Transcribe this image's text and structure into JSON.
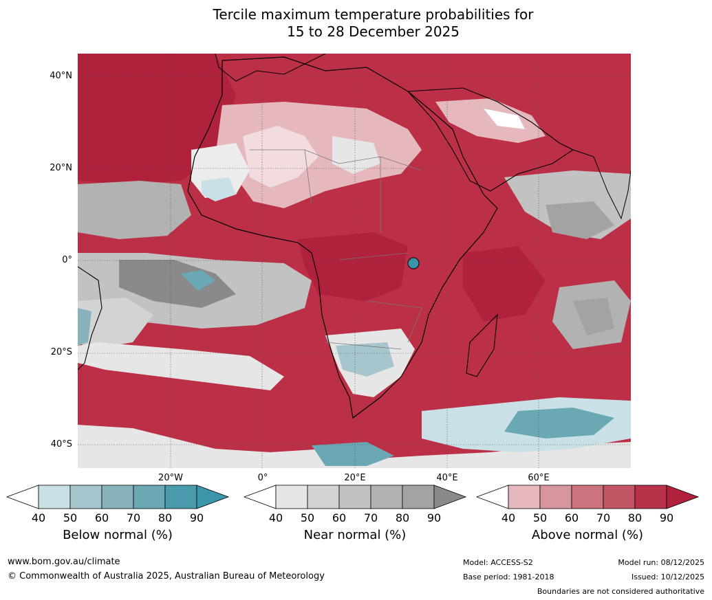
{
  "title": {
    "line1": "Tercile maximum temperature probabilities for",
    "line2": "15 to 28 December 2025"
  },
  "map": {
    "lat_labels": [
      "40°N",
      "20°N",
      "0°",
      "20°S",
      "40°S"
    ],
    "lon_labels": [
      "20°W",
      "0°",
      "20°E",
      "40°E",
      "60°E"
    ]
  },
  "colorbars": [
    {
      "label": "Below normal (%)",
      "ticks": [
        "40",
        "50",
        "60",
        "70",
        "80",
        "90"
      ],
      "colors": [
        "#ffffff",
        "#c9e0e6",
        "#a6c5cc",
        "#88b3bd",
        "#6aa8b4",
        "#4a9aab",
        "#3a96a8"
      ]
    },
    {
      "label": "Near normal (%)",
      "ticks": [
        "40",
        "50",
        "60",
        "70",
        "80",
        "90"
      ],
      "colors": [
        "#ffffff",
        "#e6e6e6",
        "#d3d3d3",
        "#c2c2c2",
        "#b2b2b2",
        "#a3a3a3",
        "#8a8a8a"
      ]
    },
    {
      "label": "Above normal (%)",
      "ticks": [
        "40",
        "50",
        "60",
        "70",
        "80",
        "90"
      ],
      "colors": [
        "#ffffff",
        "#e4b8bd",
        "#d7959c",
        "#cc747e",
        "#c25665",
        "#b83349",
        "#b0213c"
      ]
    }
  ],
  "footer": {
    "website": "www.bom.gov.au/climate",
    "copyright": "© Commonwealth of Australia 2025, Australian Bureau of Meteorology",
    "model": "Model: ACCESS-S2",
    "base_period": "Base period: 1981-2018",
    "model_run": "Model run: 08/12/2025",
    "issued": "Issued: 10/12/2025",
    "disclaimer": "Boundaries are not considered authoritative"
  }
}
